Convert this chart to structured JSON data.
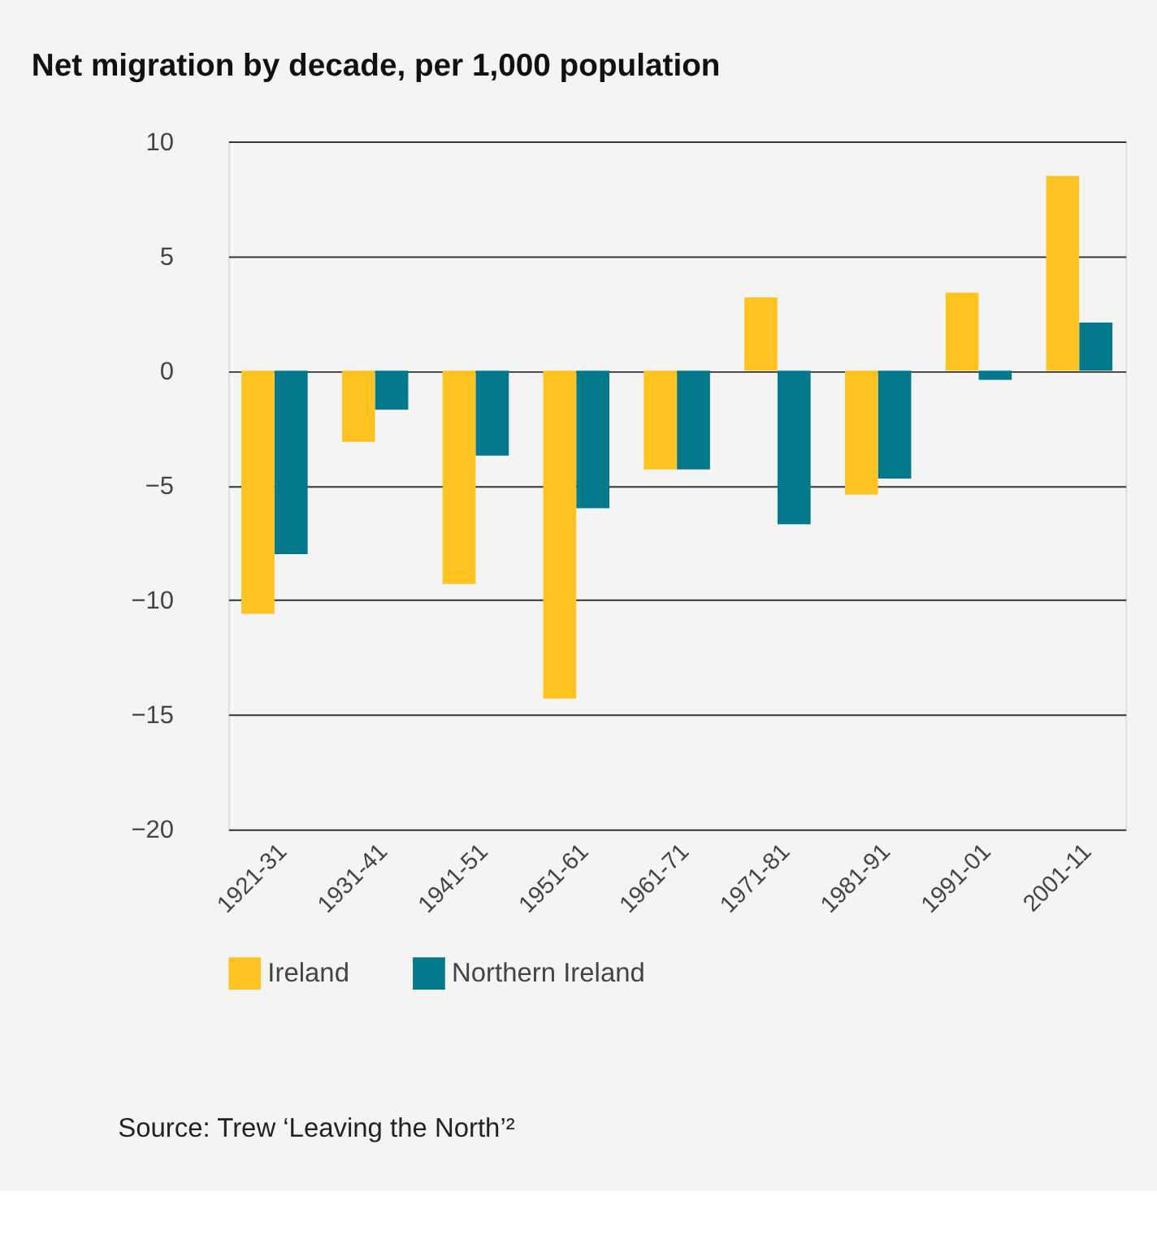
{
  "chart_data": {
    "type": "bar",
    "title": "Net migration by decade, per 1,000 population",
    "categories": [
      "1921-31",
      "1931-41",
      "1941-51",
      "1951-61",
      "1961-71",
      "1971-81",
      "1981-91",
      "1991-01",
      "2001-11"
    ],
    "series": [
      {
        "name": "Ireland",
        "color": "#fec321",
        "values": [
          -10.6,
          -3.1,
          -9.3,
          -14.3,
          -4.3,
          3.2,
          -5.4,
          3.4,
          8.5
        ]
      },
      {
        "name": "Northern Ireland",
        "color": "#03798b",
        "values": [
          -8.0,
          -1.7,
          -3.7,
          -6.0,
          -4.3,
          -6.7,
          -4.7,
          -0.4,
          2.1
        ]
      }
    ],
    "ylim": [
      -20,
      10
    ],
    "yticks": [
      -20,
      -15,
      -10,
      -5,
      0,
      5,
      10
    ],
    "grid": "y",
    "legend": "bottom",
    "annotations": [
      "Source: Trew ‘Leaving the North’²"
    ]
  }
}
